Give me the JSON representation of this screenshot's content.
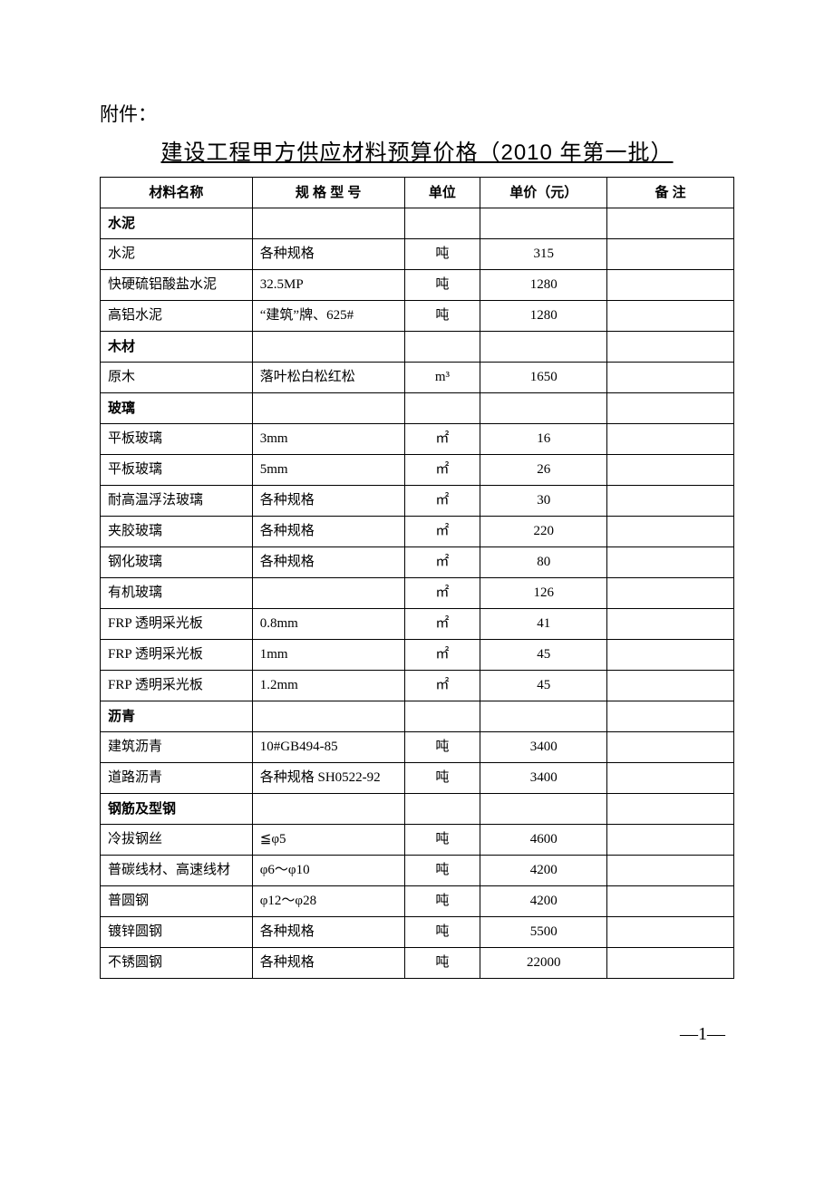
{
  "attachment_label": "附件：",
  "title": "建设工程甲方供应材料预算价格（2010 年第一批）",
  "headers": {
    "name": "材料名称",
    "spec": "规 格 型 号",
    "unit": "单位",
    "price": "单价（元）",
    "remark": "备 注"
  },
  "rows": [
    {
      "type": "category",
      "name": "水泥",
      "spec": "",
      "unit": "",
      "price": "",
      "remark": ""
    },
    {
      "type": "item",
      "name": "水泥",
      "spec": "各种规格",
      "unit": "吨",
      "price": "315",
      "remark": ""
    },
    {
      "type": "item",
      "name": "快硬硫铝酸盐水泥",
      "spec": "32.5MP",
      "unit": "吨",
      "price": "1280",
      "remark": ""
    },
    {
      "type": "item",
      "name": "高铝水泥",
      "spec": "“建筑”牌、625#",
      "unit": "吨",
      "price": "1280",
      "remark": ""
    },
    {
      "type": "category",
      "name": "木材",
      "spec": "",
      "unit": "",
      "price": "",
      "remark": ""
    },
    {
      "type": "item",
      "name": "原木",
      "spec": "落叶松白松红松",
      "unit": "m³",
      "price": "1650",
      "remark": ""
    },
    {
      "type": "category",
      "name": "玻璃",
      "spec": "",
      "unit": "",
      "price": "",
      "remark": ""
    },
    {
      "type": "item",
      "name": "平板玻璃",
      "spec": "3mm",
      "unit": "㎡",
      "price": "16",
      "remark": ""
    },
    {
      "type": "item",
      "name": "平板玻璃",
      "spec": "5mm",
      "unit": "㎡",
      "price": "26",
      "remark": ""
    },
    {
      "type": "item",
      "name": "耐高温浮法玻璃",
      "spec": "各种规格",
      "unit": "㎡",
      "price": "30",
      "remark": ""
    },
    {
      "type": "item",
      "name": "夹胶玻璃",
      "spec": "各种规格",
      "unit": "㎡",
      "price": "220",
      "remark": ""
    },
    {
      "type": "item",
      "name": "钢化玻璃",
      "spec": "各种规格",
      "unit": "㎡",
      "price": "80",
      "remark": ""
    },
    {
      "type": "item",
      "name": "有机玻璃",
      "spec": "",
      "unit": "㎡",
      "price": "126",
      "remark": ""
    },
    {
      "type": "item",
      "name": "FRP 透明采光板",
      "spec": "0.8mm",
      "unit": "㎡",
      "price": "41",
      "remark": ""
    },
    {
      "type": "item",
      "name": "FRP 透明采光板",
      "spec": "1mm",
      "unit": "㎡",
      "price": "45",
      "remark": ""
    },
    {
      "type": "item",
      "name": "FRP 透明采光板",
      "spec": "1.2mm",
      "unit": "㎡",
      "price": "45",
      "remark": ""
    },
    {
      "type": "category",
      "name": "沥青",
      "spec": "",
      "unit": "",
      "price": "",
      "remark": ""
    },
    {
      "type": "item",
      "name": "建筑沥青",
      "spec": "10#GB494-85",
      "unit": "吨",
      "price": "3400",
      "remark": ""
    },
    {
      "type": "item",
      "name": "道路沥青",
      "spec": "各种规格 SH0522-92",
      "unit": "吨",
      "price": "3400",
      "remark": ""
    },
    {
      "type": "category",
      "name": "钢筋及型钢",
      "spec": "",
      "unit": "",
      "price": "",
      "remark": ""
    },
    {
      "type": "item",
      "name": "冷拔钢丝",
      "spec": "≦φ5",
      "unit": "吨",
      "price": "4600",
      "remark": ""
    },
    {
      "type": "item",
      "name": "普碳线材、高速线材",
      "spec": "φ6～φ10",
      "unit": "吨",
      "price": "4200",
      "remark": ""
    },
    {
      "type": "item",
      "name": "普圆钢",
      "spec": "φ12～φ28",
      "unit": "吨",
      "price": "4200",
      "remark": ""
    },
    {
      "type": "item",
      "name": "镀锌圆钢",
      "spec": "各种规格",
      "unit": "吨",
      "price": "5500",
      "remark": ""
    },
    {
      "type": "item",
      "name": "不锈圆钢",
      "spec": "各种规格",
      "unit": "吨",
      "price": "22000",
      "remark": ""
    }
  ],
  "page_number": "—1—"
}
